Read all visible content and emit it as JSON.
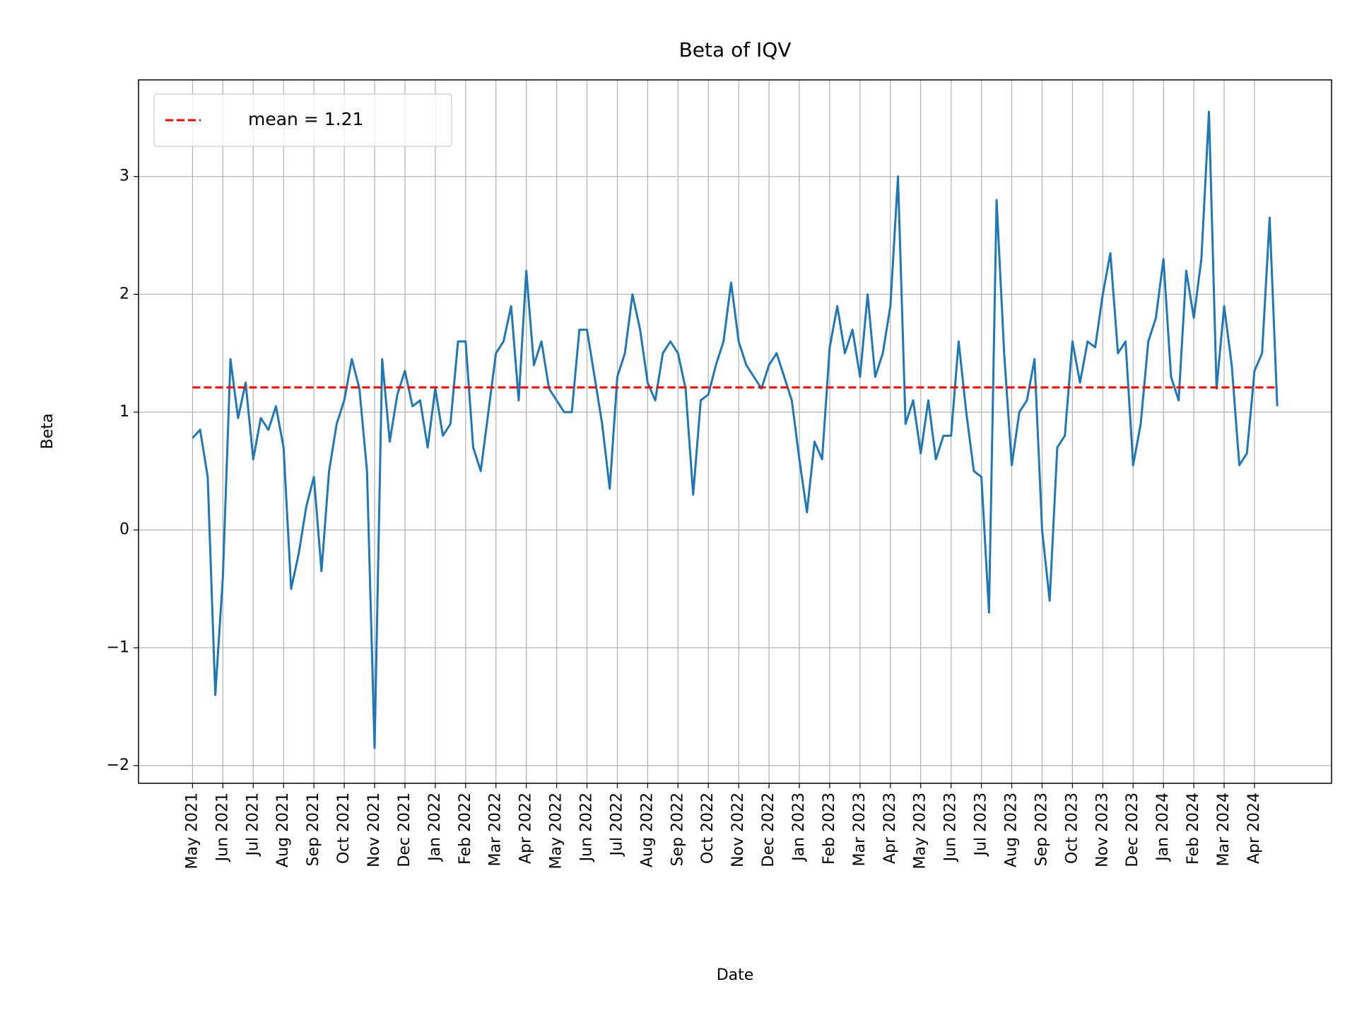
{
  "chart_data": {
    "type": "line",
    "title": "Beta of IQV",
    "x_label": "Date",
    "y_label": "Beta",
    "x": [
      0,
      0.25,
      0.5,
      0.75,
      1,
      1.25,
      1.5,
      1.75,
      2,
      2.25,
      2.5,
      2.75,
      3,
      3.25,
      3.5,
      3.75,
      4,
      4.25,
      4.5,
      4.75,
      5,
      5.25,
      5.5,
      5.75,
      6,
      6.25,
      6.5,
      6.75,
      7,
      7.25,
      7.5,
      7.75,
      8,
      8.25,
      8.5,
      8.75,
      9,
      9.25,
      9.5,
      9.75,
      10,
      10.25,
      10.5,
      10.75,
      11,
      11.25,
      11.5,
      11.75,
      12,
      12.25,
      12.5,
      12.75,
      13,
      13.25,
      13.5,
      13.75,
      14,
      14.25,
      14.5,
      14.75,
      15,
      15.25,
      15.5,
      15.75,
      16,
      16.25,
      16.5,
      16.75,
      17,
      17.25,
      17.5,
      17.75,
      18,
      18.25,
      18.5,
      18.75,
      19,
      19.25,
      19.5,
      19.75,
      20,
      20.25,
      20.5,
      20.75,
      21,
      21.25,
      21.5,
      21.75,
      22,
      22.25,
      22.5,
      22.75,
      23,
      23.25,
      23.5,
      23.75,
      24,
      24.25,
      24.5,
      24.75,
      25,
      25.25,
      25.5,
      25.75,
      26,
      26.25,
      26.5,
      26.75,
      27,
      27.25,
      27.5,
      27.75,
      28,
      28.25,
      28.5,
      28.75,
      29,
      29.25,
      29.5,
      29.75,
      30,
      30.25,
      30.5,
      30.75,
      31,
      31.25,
      31.5,
      31.75,
      32,
      32.25,
      32.5,
      32.75,
      33,
      33.25,
      33.5,
      33.75,
      34,
      34.25,
      34.5,
      34.75,
      35,
      35.25,
      35.5,
      35.75
    ],
    "series": [
      {
        "color": "#1f77b4",
        "values": [
          0.78,
          0.85,
          0.45,
          -1.4,
          -0.4,
          1.45,
          0.95,
          1.25,
          0.6,
          0.95,
          0.85,
          1.05,
          0.7,
          -0.5,
          -0.2,
          0.2,
          0.45,
          -0.35,
          0.5,
          0.9,
          1.1,
          1.45,
          1.2,
          0.5,
          -1.85,
          1.45,
          0.75,
          1.15,
          1.35,
          1.05,
          1.1,
          0.7,
          1.2,
          0.8,
          0.9,
          1.6,
          1.6,
          0.7,
          0.5,
          1.0,
          1.5,
          1.6,
          1.9,
          1.1,
          2.2,
          1.4,
          1.6,
          1.2,
          1.1,
          1.0,
          1.0,
          1.7,
          1.7,
          1.3,
          0.9,
          0.35,
          1.3,
          1.5,
          2.0,
          1.7,
          1.25,
          1.1,
          1.5,
          1.6,
          1.5,
          1.2,
          0.3,
          1.1,
          1.15,
          1.4,
          1.6,
          2.1,
          1.6,
          1.4,
          1.3,
          1.2,
          1.4,
          1.5,
          1.3,
          1.1,
          0.6,
          0.15,
          0.75,
          0.6,
          1.55,
          1.9,
          1.5,
          1.7,
          1.3,
          2.0,
          1.3,
          1.5,
          1.9,
          3.0,
          0.9,
          1.1,
          0.65,
          1.1,
          0.6,
          0.8,
          0.8,
          1.6,
          1.0,
          0.5,
          0.45,
          -0.7,
          2.8,
          1.5,
          0.55,
          1.0,
          1.1,
          1.45,
          0.0,
          -0.6,
          0.7,
          0.8,
          1.6,
          1.25,
          1.6,
          1.55,
          2.0,
          2.35,
          1.5,
          1.6,
          0.55,
          0.9,
          1.6,
          1.8,
          2.3,
          1.3,
          1.1,
          2.2,
          1.8,
          2.3,
          3.55,
          1.2,
          1.9,
          1.4,
          0.55,
          0.65,
          1.35,
          1.5,
          2.65,
          1.05
        ]
      }
    ],
    "reference_line": {
      "name": "mean = 1.21",
      "value": 1.21,
      "color": "#ff0000"
    },
    "xlim": [
      -1.78,
      37.54
    ],
    "ylim": [
      -2.15,
      3.82
    ],
    "xticks": [
      {
        "value": 0,
        "label": "May 2021"
      },
      {
        "value": 1,
        "label": "Jun 2021"
      },
      {
        "value": 2,
        "label": "Jul 2021"
      },
      {
        "value": 3,
        "label": "Aug 2021"
      },
      {
        "value": 4,
        "label": "Sep 2021"
      },
      {
        "value": 5,
        "label": "Oct 2021"
      },
      {
        "value": 6,
        "label": "Nov 2021"
      },
      {
        "value": 7,
        "label": "Dec 2021"
      },
      {
        "value": 8,
        "label": "Jan 2022"
      },
      {
        "value": 9,
        "label": "Feb 2022"
      },
      {
        "value": 10,
        "label": "Mar 2022"
      },
      {
        "value": 11,
        "label": "Apr 2022"
      },
      {
        "value": 12,
        "label": "May 2022"
      },
      {
        "value": 13,
        "label": "Jun 2022"
      },
      {
        "value": 14,
        "label": "Jul 2022"
      },
      {
        "value": 15,
        "label": "Aug 2022"
      },
      {
        "value": 16,
        "label": "Sep 2022"
      },
      {
        "value": 17,
        "label": "Oct 2022"
      },
      {
        "value": 18,
        "label": "Nov 2022"
      },
      {
        "value": 19,
        "label": "Dec 2022"
      },
      {
        "value": 20,
        "label": "Jan 2023"
      },
      {
        "value": 21,
        "label": "Feb 2023"
      },
      {
        "value": 22,
        "label": "Mar 2023"
      },
      {
        "value": 23,
        "label": "Apr 2023"
      },
      {
        "value": 24,
        "label": "May 2023"
      },
      {
        "value": 25,
        "label": "Jun 2023"
      },
      {
        "value": 26,
        "label": "Jul 2023"
      },
      {
        "value": 27,
        "label": "Aug 2023"
      },
      {
        "value": 28,
        "label": "Sep 2023"
      },
      {
        "value": 29,
        "label": "Oct 2023"
      },
      {
        "value": 30,
        "label": "Nov 2023"
      },
      {
        "value": 31,
        "label": "Dec 2023"
      },
      {
        "value": 32,
        "label": "Jan 2024"
      },
      {
        "value": 33,
        "label": "Feb 2024"
      },
      {
        "value": 34,
        "label": "Mar 2024"
      },
      {
        "value": 35,
        "label": "Apr 2024"
      }
    ],
    "yticks": [
      {
        "value": -2,
        "label": "−2"
      },
      {
        "value": -1,
        "label": "−1"
      },
      0,
      1,
      2,
      3
    ],
    "grid": true,
    "legend": "upper left"
  }
}
